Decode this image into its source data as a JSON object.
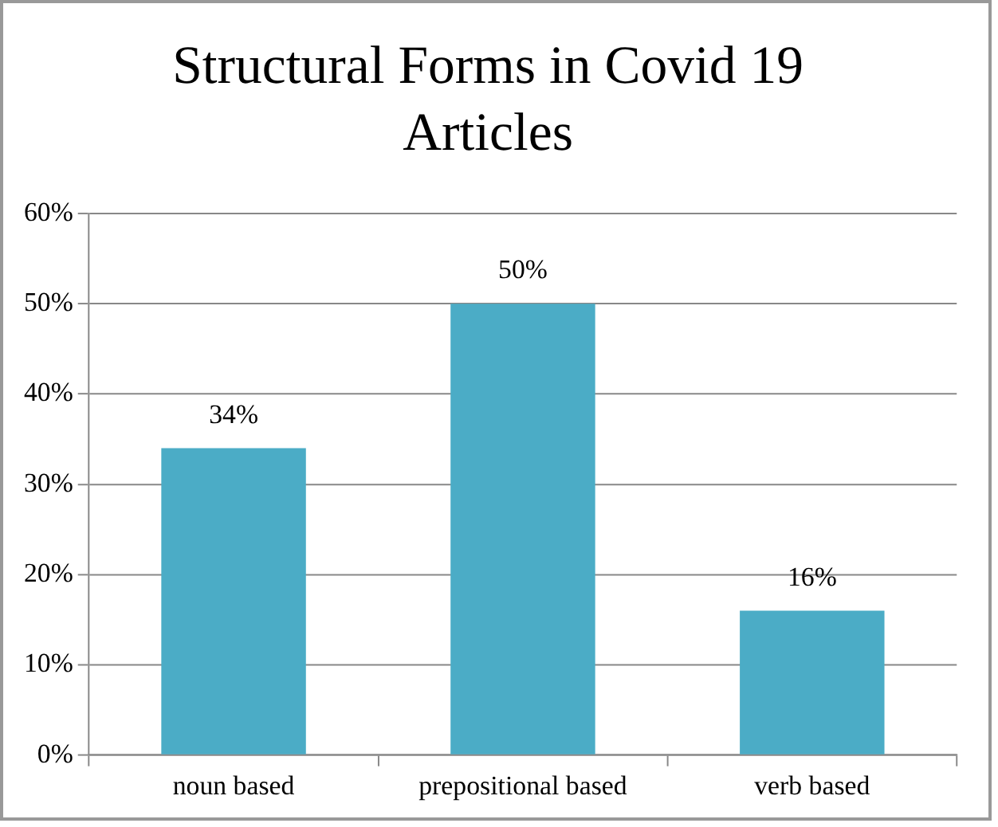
{
  "chart_data": {
    "type": "bar",
    "title": "Structural Forms in Covid 19 Articles",
    "categories": [
      "noun based",
      "prepositional based",
      "verb based"
    ],
    "values": [
      34,
      50,
      16
    ],
    "value_labels": [
      "34%",
      "50%",
      "16%"
    ],
    "color": "#4bacc6",
    "ylim": [
      0,
      60
    ],
    "yticks": [
      {
        "value": 0,
        "label": "0%"
      },
      {
        "value": 10,
        "label": "10%"
      },
      {
        "value": 20,
        "label": "20%"
      },
      {
        "value": 30,
        "label": "30%"
      },
      {
        "value": 40,
        "label": "40%"
      },
      {
        "value": 50,
        "label": "50%"
      },
      {
        "value": 60,
        "label": "60%"
      }
    ],
    "grid": "y",
    "legend": false
  }
}
